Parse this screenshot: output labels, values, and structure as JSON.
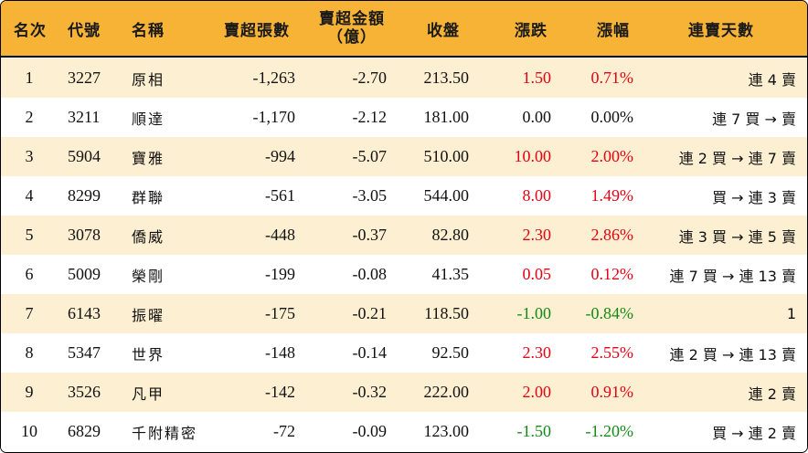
{
  "headers": {
    "rank": "名次",
    "code": "代號",
    "name": "名稱",
    "sell_lots": "賣超張數",
    "sell_amount_line1": "賣超金額",
    "sell_amount_line2": "（億）",
    "close": "收盤",
    "change": "漲跌",
    "change_pct": "漲幅",
    "streak": "連賣天數"
  },
  "colors": {
    "header_bg": "#f7b335",
    "row_alt_bg": "#fdefd1",
    "up": "#e60012",
    "down": "#138a17"
  },
  "rows": [
    {
      "rank": "1",
      "code": "3227",
      "name": "原相",
      "sell_lots": "-1,263",
      "sell_amount": "-2.70",
      "close": "213.50",
      "change": "1.50",
      "change_pct": "0.71%",
      "streak": "連 4 賣",
      "trend": "up"
    },
    {
      "rank": "2",
      "code": "3211",
      "name": "順達",
      "sell_lots": "-1,170",
      "sell_amount": "-2.12",
      "close": "181.00",
      "change": "0.00",
      "change_pct": "0.00%",
      "streak": "連 7 買 → 賣",
      "trend": "flat"
    },
    {
      "rank": "3",
      "code": "5904",
      "name": "寶雅",
      "sell_lots": "-994",
      "sell_amount": "-5.07",
      "close": "510.00",
      "change": "10.00",
      "change_pct": "2.00%",
      "streak": "連 2 買 → 連 7 賣",
      "trend": "up"
    },
    {
      "rank": "4",
      "code": "8299",
      "name": "群聯",
      "sell_lots": "-561",
      "sell_amount": "-3.05",
      "close": "544.00",
      "change": "8.00",
      "change_pct": "1.49%",
      "streak": "買 → 連 3 賣",
      "trend": "up"
    },
    {
      "rank": "5",
      "code": "3078",
      "name": "僑威",
      "sell_lots": "-448",
      "sell_amount": "-0.37",
      "close": "82.80",
      "change": "2.30",
      "change_pct": "2.86%",
      "streak": "連 3 買 → 連 5 賣",
      "trend": "up"
    },
    {
      "rank": "6",
      "code": "5009",
      "name": "榮剛",
      "sell_lots": "-199",
      "sell_amount": "-0.08",
      "close": "41.35",
      "change": "0.05",
      "change_pct": "0.12%",
      "streak": "連 7 買 → 連 13 賣",
      "trend": "up"
    },
    {
      "rank": "7",
      "code": "6143",
      "name": "振曜",
      "sell_lots": "-175",
      "sell_amount": "-0.21",
      "close": "118.50",
      "change": "-1.00",
      "change_pct": "-0.84%",
      "streak": "1",
      "trend": "down"
    },
    {
      "rank": "8",
      "code": "5347",
      "name": "世界",
      "sell_lots": "-148",
      "sell_amount": "-0.14",
      "close": "92.50",
      "change": "2.30",
      "change_pct": "2.55%",
      "streak": "連 2 買 → 連 13 賣",
      "trend": "up"
    },
    {
      "rank": "9",
      "code": "3526",
      "name": "凡甲",
      "sell_lots": "-142",
      "sell_amount": "-0.32",
      "close": "222.00",
      "change": "2.00",
      "change_pct": "0.91%",
      "streak": "連 2 賣",
      "trend": "up"
    },
    {
      "rank": "10",
      "code": "6829",
      "name": "千附精密",
      "sell_lots": "-72",
      "sell_amount": "-0.09",
      "close": "123.00",
      "change": "-1.50",
      "change_pct": "-1.20%",
      "streak": "買 → 連 2 賣",
      "trend": "down"
    }
  ]
}
